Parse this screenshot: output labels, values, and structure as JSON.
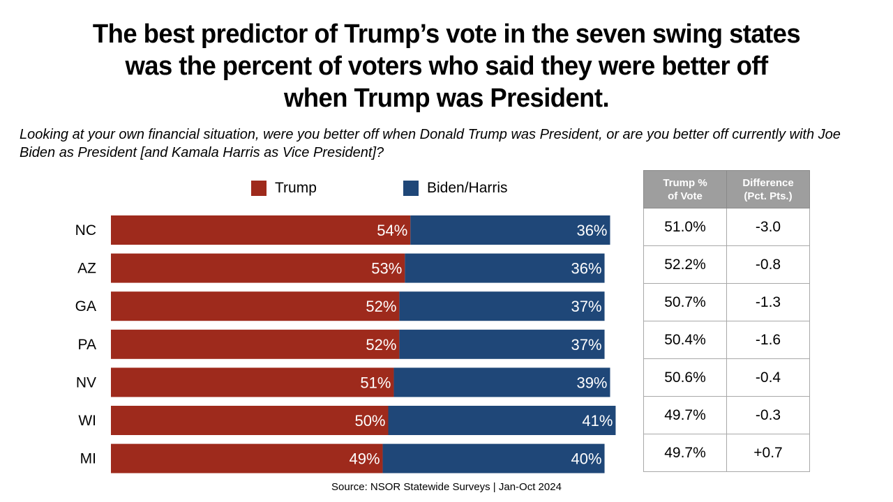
{
  "title_lines": [
    "The best predictor of Trump’s vote in the seven swing states",
    "was the percent of voters who said they were better off",
    "when Trump was President."
  ],
  "question": "Looking at your own financial situation, were you better off when Donald Trump was President, or are you better off currently with Joe Biden as President [and Kamala Harris as Vice President]?",
  "source": "Source: NSOR Statewide Surveys | Jan-Oct 2024",
  "colors": {
    "trump": "#9e2a1c",
    "biden": "#1f4778",
    "header_bg": "#9e9e9e"
  },
  "chart_data": {
    "type": "bar",
    "orientation": "horizontal",
    "stacked": true,
    "categories": [
      "NC",
      "AZ",
      "GA",
      "PA",
      "NV",
      "WI",
      "MI"
    ],
    "series": [
      {
        "name": "Trump",
        "values": [
          54,
          53,
          52,
          52,
          51,
          50,
          49
        ],
        "labels": [
          "54%",
          "53%",
          "52%",
          "52%",
          "51%",
          "50%",
          "49%"
        ]
      },
      {
        "name": "Biden/Harris",
        "values": [
          36,
          36,
          37,
          37,
          39,
          41,
          40
        ],
        "labels": [
          "36%",
          "36%",
          "37%",
          "37%",
          "39%",
          "41%",
          "40%"
        ]
      }
    ],
    "xlim": [
      0,
      100
    ],
    "legend": "top"
  },
  "table": {
    "headers": [
      [
        "Trump %",
        "of Vote"
      ],
      [
        "Difference",
        "(Pct. Pts.)"
      ]
    ],
    "rows": [
      [
        "51.0%",
        "-3.0"
      ],
      [
        "52.2%",
        "-0.8"
      ],
      [
        "50.7%",
        "-1.3"
      ],
      [
        "50.4%",
        "-1.6"
      ],
      [
        "50.6%",
        "-0.4"
      ],
      [
        "49.7%",
        "-0.3"
      ],
      [
        "49.7%",
        "+0.7"
      ]
    ]
  }
}
